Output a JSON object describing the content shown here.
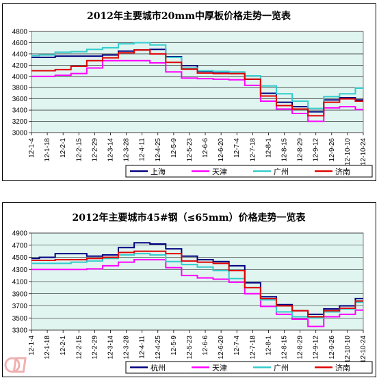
{
  "chart_data": [
    {
      "type": "line",
      "title": "2012年主要城市20mm中厚板价格走势一览表",
      "ylim": [
        3000,
        4800
      ],
      "y_ticks": [
        3000,
        3200,
        3400,
        3600,
        3800,
        4000,
        4200,
        4400,
        4600,
        4800
      ],
      "x_tick_labels": [
        "12-1-4",
        "12-1-18",
        "12-2-1",
        "12-2-15",
        "12-2-29",
        "12-3-14",
        "12-3-28",
        "12-4-11",
        "12-4-25",
        "12-5-9",
        "12-5-23",
        "12-6-6",
        "12-6-20",
        "12-7-4",
        "12-7-18",
        "12-8-1",
        "12-8-15",
        "12-8-29",
        "12-9-12",
        "12-9-26",
        "12-10-10",
        "12-10-24"
      ],
      "grid": true,
      "legend_position": "bottom",
      "series": [
        {
          "name": "上海",
          "color": "#000080",
          "values": [
            4340,
            4340,
            4360,
            4360,
            4360,
            4380,
            4450,
            4470,
            4480,
            4350,
            4190,
            4090,
            4060,
            4050,
            3950,
            3700,
            3540,
            3460,
            3370,
            3580,
            3620,
            3580
          ]
        },
        {
          "name": "天津",
          "color": "#FF00FF",
          "values": [
            4000,
            4000,
            4020,
            4050,
            4150,
            4280,
            4280,
            4280,
            4240,
            4080,
            3970,
            3960,
            3950,
            3940,
            3840,
            3560,
            3420,
            3340,
            3200,
            3440,
            3460,
            3410
          ]
        },
        {
          "name": "广州",
          "color": "#33CCCC",
          "values": [
            4370,
            4380,
            4430,
            4440,
            4480,
            4510,
            4580,
            4600,
            4560,
            4340,
            4150,
            4100,
            4090,
            4080,
            4010,
            3830,
            3690,
            3560,
            3430,
            3640,
            3690,
            3790
          ]
        },
        {
          "name": "济南",
          "color": "#E00000",
          "values": [
            4100,
            4100,
            4120,
            4180,
            4280,
            4330,
            4420,
            4470,
            4400,
            4250,
            4130,
            4060,
            4050,
            4050,
            3950,
            3650,
            3480,
            3420,
            3300,
            3540,
            3600,
            3560
          ]
        }
      ]
    },
    {
      "type": "line",
      "title": "2012年主要城市45#钢（≤65mm）价格走势一览表",
      "ylim": [
        3300,
        4900
      ],
      "y_ticks": [
        3300,
        3500,
        3700,
        3900,
        4100,
        4300,
        4500,
        4700,
        4900
      ],
      "x_tick_labels": [
        "12-1-4",
        "12-1-18",
        "12-2-1",
        "12-2-15",
        "12-2-29",
        "12-3-14",
        "12-3-28",
        "12-4-11",
        "12-4-25",
        "12-5-9",
        "12-5-23",
        "12-6-6",
        "12-6-20",
        "12-7-4",
        "12-7-18",
        "12-8-1",
        "12-8-15",
        "12-8-29",
        "12-9-12",
        "12-9-26",
        "12-10-10",
        "12-10-24"
      ],
      "grid": true,
      "legend_position": "bottom",
      "series": [
        {
          "name": "杭州",
          "color": "#000080",
          "values": [
            4480,
            4500,
            4560,
            4560,
            4520,
            4540,
            4660,
            4740,
            4720,
            4640,
            4520,
            4460,
            4430,
            4360,
            4080,
            3850,
            3720,
            3620,
            3560,
            3650,
            3700,
            3820
          ]
        },
        {
          "name": "天津",
          "color": "#FF00FF",
          "values": [
            4300,
            4300,
            4300,
            4300,
            4310,
            4360,
            4420,
            4460,
            4460,
            4330,
            4200,
            4160,
            4140,
            4090,
            3900,
            3690,
            3560,
            3480,
            3360,
            3520,
            3560,
            3630
          ]
        },
        {
          "name": "广州",
          "color": "#33CCCC",
          "values": [
            4400,
            4400,
            4400,
            4420,
            4440,
            4480,
            4540,
            4560,
            4540,
            4430,
            4380,
            4340,
            4280,
            4150,
            4000,
            3800,
            3600,
            3520,
            3500,
            3600,
            3650,
            3760
          ]
        },
        {
          "name": "济南",
          "color": "#E00000",
          "values": [
            4450,
            4450,
            4460,
            4460,
            4480,
            4500,
            4580,
            4600,
            4600,
            4560,
            4440,
            4420,
            4400,
            4280,
            4000,
            3820,
            3700,
            3620,
            3520,
            3620,
            3660,
            3780
          ]
        }
      ]
    }
  ]
}
